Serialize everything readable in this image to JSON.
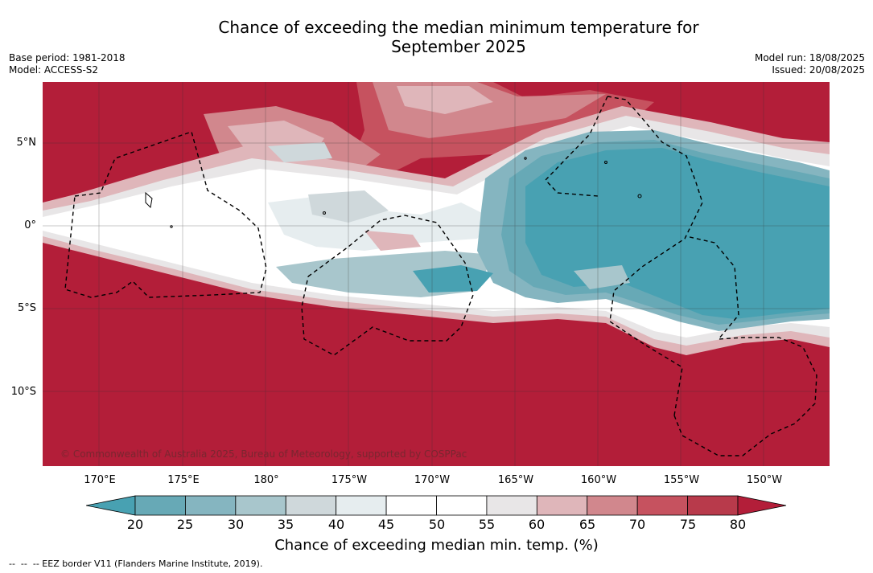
{
  "title": {
    "line1": "Chance of exceeding the median minimum temperature for",
    "line2": "September 2025"
  },
  "meta_left": {
    "base_period": "Base period: 1981-2018",
    "model": "Model: ACCESS-S2"
  },
  "meta_right": {
    "model_run": "Model run: 18/08/2025",
    "issued": "Issued: 20/08/2025"
  },
  "map": {
    "lat_labels": [
      "5°N",
      "0°",
      "5°S",
      "10°S"
    ],
    "lon_labels": [
      "170°E",
      "175°E",
      "180°",
      "175°W",
      "170°W",
      "165°W",
      "160°W",
      "155°W",
      "150°W"
    ],
    "copyright": "© Commonwealth of Australia 2025, Bureau of Meteorology, supported by COSPPac",
    "colors": {
      "very_high": "#b31e39",
      "high_75": "#c6525f",
      "high_70": "#d1878d",
      "high_65": "#dfb6ba",
      "mid_60": "#e8e6e7",
      "neutral": "#ffffff",
      "low_40": "#e6edef",
      "low_35": "#cfd8db",
      "low_30": "#a8c6cc",
      "low_25": "#85b5c0",
      "low_20": "#67a9b6",
      "very_low": "#48a1b2"
    }
  },
  "colorbar": {
    "ticks": [
      "20",
      "25",
      "30",
      "35",
      "40",
      "45",
      "50",
      "55",
      "60",
      "65",
      "70",
      "75",
      "80"
    ],
    "segment_colors": [
      "#67a9b6",
      "#85b5c0",
      "#a8c6cc",
      "#cfd8db",
      "#e6edef",
      "#ffffff",
      "#ffffff",
      "#e8e6e7",
      "#dfb6ba",
      "#d1878d",
      "#c6525f",
      "#b83a4b"
    ],
    "under_color": "#48a1b2",
    "over_color": "#b31e39",
    "label": "Chance of exceeding median min. temp. (%)"
  },
  "eez_note": "--  --  -- EEZ border V11 (Flanders Marine Institute, 2019)."
}
